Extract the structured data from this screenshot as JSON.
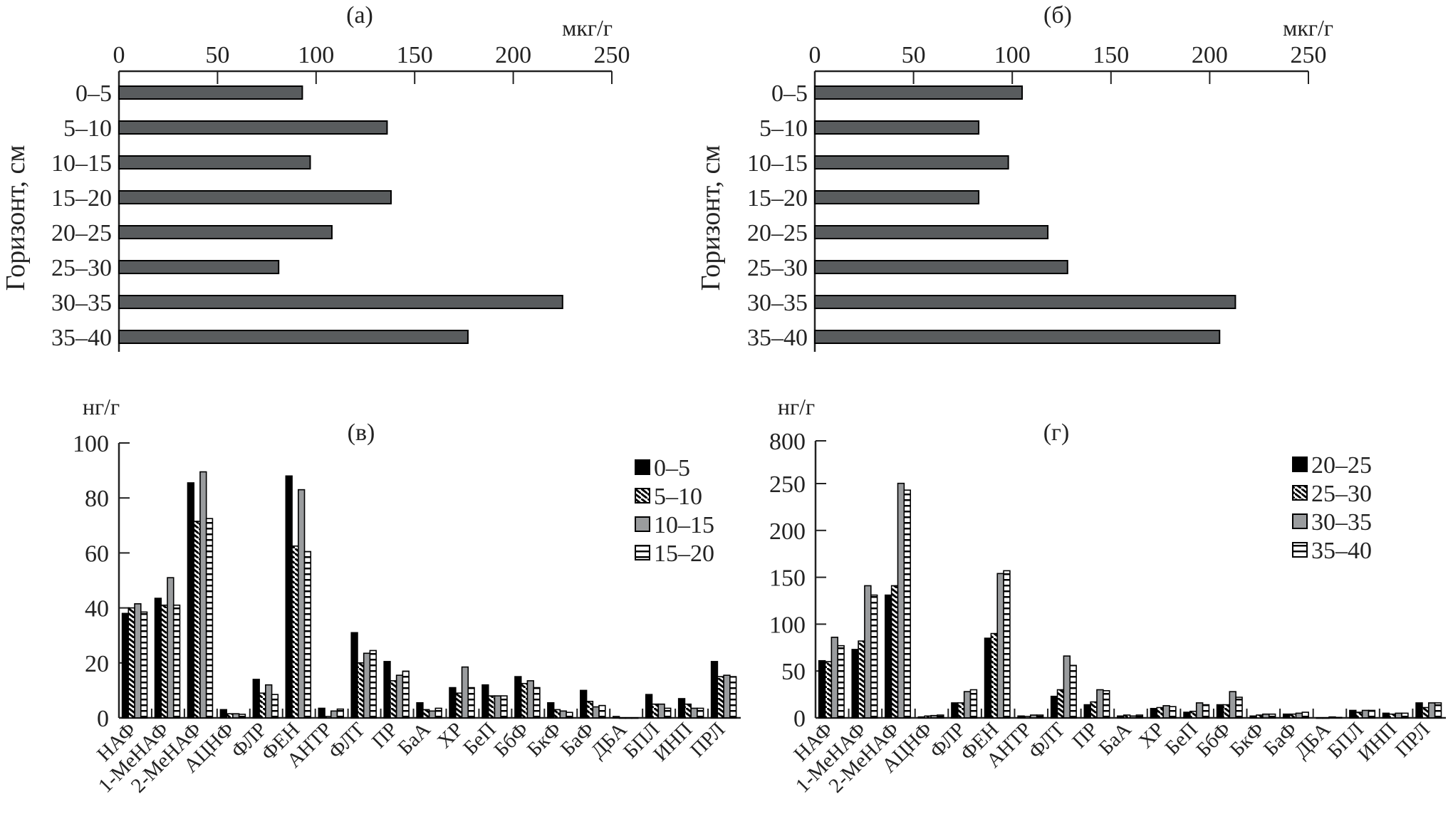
{
  "chart_data": [
    {
      "type": "bar",
      "orientation": "horizontal",
      "title": "(а)",
      "unit": "мкг/г",
      "ylabel": "Горизонт, см",
      "categories": [
        "0–5",
        "5–10",
        "10–15",
        "15–20",
        "20–25",
        "25–30",
        "30–35",
        "35–40"
      ],
      "values": [
        93,
        136,
        97,
        138,
        108,
        81,
        225,
        177
      ],
      "xlim": [
        0,
        250
      ],
      "xticks": [
        "0",
        "50",
        "100",
        "150",
        "200",
        "250"
      ],
      "bar_color": "#595c5e"
    },
    {
      "type": "bar",
      "orientation": "horizontal",
      "title": "(б)",
      "unit": "мкг/г",
      "ylabel": "Горизонт, см",
      "categories": [
        "0–5",
        "5–10",
        "10–15",
        "15–20",
        "20–25",
        "25–30",
        "30–35",
        "35–40"
      ],
      "values": [
        105,
        83,
        98,
        83,
        118,
        128,
        213,
        205
      ],
      "xlim": [
        0,
        250
      ],
      "xticks": [
        "0",
        "50",
        "100",
        "150",
        "200",
        "250"
      ],
      "bar_color": "#595c5e"
    },
    {
      "type": "bar",
      "title": "(в)",
      "unit": "нг/г",
      "ylim": [
        0,
        100
      ],
      "yticks": [
        "0",
        "20",
        "40",
        "60",
        "80",
        "100"
      ],
      "legend_position": "top-right",
      "categories": [
        "НАФ",
        "1-МеНАФ",
        "2-МеНАФ",
        "АЦНФ",
        "ФЛР",
        "ФЕН",
        "АНТР",
        "ФЛТ",
        "ПР",
        "БаА",
        "ХР",
        "БеП",
        "БбФ",
        "БкФ",
        "БаФ",
        "ДБА",
        "БПЛ",
        "ИНП",
        "ПРЛ"
      ],
      "series": [
        {
          "name": "0–5",
          "fill": "solid-black",
          "values": [
            38,
            43.5,
            85.5,
            3,
            14,
            88,
            3.5,
            31,
            20.5,
            5.5,
            11,
            12,
            15,
            5.5,
            10,
            0.5,
            8.5,
            7,
            20.5
          ]
        },
        {
          "name": "5–10",
          "fill": "diagonal-hatch",
          "values": [
            40,
            41,
            71.5,
            1.5,
            9,
            62.5,
            0.5,
            20,
            13.5,
            3,
            9,
            8,
            12.5,
            3,
            6,
            0,
            5,
            5,
            15
          ]
        },
        {
          "name": "10–15",
          "fill": "solid-gray",
          "values": [
            41.5,
            51,
            89.5,
            1.5,
            12,
            83,
            2.5,
            23.5,
            15.5,
            2.5,
            18.5,
            8,
            13.5,
            2.5,
            4,
            0,
            5,
            3.5,
            15.5
          ]
        },
        {
          "name": "15–20",
          "fill": "horizontal-stripes",
          "values": [
            38.5,
            41,
            72.5,
            1.3,
            8.5,
            60.5,
            3.2,
            24.5,
            17,
            3.5,
            11,
            8,
            11,
            2,
            4.5,
            0,
            3.5,
            3.5,
            15
          ]
        }
      ]
    },
    {
      "type": "bar",
      "title": "(г)",
      "unit": "нг/г",
      "ylim": [
        0,
        800
      ],
      "axis_break": [
        250,
        800
      ],
      "yticks": [
        "0",
        "50",
        "100",
        "150",
        "200",
        "250",
        "800"
      ],
      "legend_position": "top-right",
      "categories": [
        "НАФ",
        "1-МеНАФ",
        "2-МеНАФ",
        "АЦНФ",
        "ФЛР",
        "ФЕН",
        "АНТР",
        "ФЛТ",
        "ПР",
        "БаА",
        "ХР",
        "БеП",
        "БбФ",
        "БкФ",
        "БаФ",
        "ДБА",
        "БПЛ",
        "ИНП",
        "ПРЛ"
      ],
      "series": [
        {
          "name": "20–25",
          "fill": "solid-black",
          "values": [
            61,
            73,
            131,
            1,
            16,
            85,
            2,
            23,
            14,
            2,
            10,
            6,
            14,
            2,
            4,
            0,
            8,
            5,
            16
          ]
        },
        {
          "name": "25–30",
          "fill": "diagonal-hatch",
          "values": [
            60,
            82,
            141,
            2,
            16,
            90,
            1.5,
            30,
            17,
            3,
            11,
            7,
            14,
            3,
            4,
            0,
            6,
            4,
            11
          ]
        },
        {
          "name": "30–35",
          "fill": "solid-gray",
          "values": [
            86,
            141,
            253,
            2.5,
            28,
            154,
            3,
            66,
            30,
            2,
            13,
            16,
            28,
            4,
            5,
            1,
            8,
            5,
            16
          ]
        },
        {
          "name": "35–40",
          "fill": "horizontal-stripes",
          "values": [
            77,
            131,
            243,
            3,
            30,
            157,
            3,
            56,
            29,
            3,
            12,
            14,
            22,
            4,
            6,
            0.5,
            8,
            5,
            16
          ]
        }
      ]
    }
  ]
}
